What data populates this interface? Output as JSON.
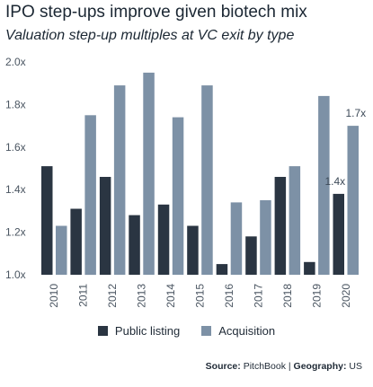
{
  "title": "IPO step-ups improve given biotech mix",
  "subtitle": "Valuation step-up multiples at VC exit by type",
  "colors": {
    "public": "#2a3542",
    "acquisition": "#7d91a6",
    "text": "#1b2733"
  },
  "source": {
    "label": "Source:",
    "value": "PitchBook",
    "sep": "|",
    "geo_label": "Geography:",
    "geo_value": "US"
  },
  "chart_data": {
    "type": "bar",
    "categories": [
      "2010",
      "2011",
      "2012",
      "2013",
      "2014",
      "2015",
      "2016",
      "2017",
      "2018",
      "2019",
      "2020"
    ],
    "series": [
      {
        "name": "Public listing",
        "values": [
          1.51,
          1.31,
          1.46,
          1.28,
          1.33,
          1.23,
          1.05,
          1.18,
          1.46,
          1.06,
          1.38
        ]
      },
      {
        "name": "Acquisition",
        "values": [
          1.23,
          1.75,
          1.89,
          1.95,
          1.74,
          1.89,
          1.34,
          1.35,
          1.51,
          1.84,
          1.7
        ]
      }
    ],
    "ylim": [
      1.0,
      2.0
    ],
    "yticks": [
      "1.0x",
      "1.2x",
      "1.4x",
      "1.6x",
      "1.8x",
      "2.0x"
    ],
    "ytick_values": [
      1.0,
      1.2,
      1.4,
      1.6,
      1.8,
      2.0
    ],
    "annotations": [
      {
        "series": 0,
        "category": "2020",
        "text": "1.4x"
      },
      {
        "series": 1,
        "category": "2020",
        "text": "1.7x"
      }
    ],
    "legend_position": "bottom",
    "grid": false
  }
}
